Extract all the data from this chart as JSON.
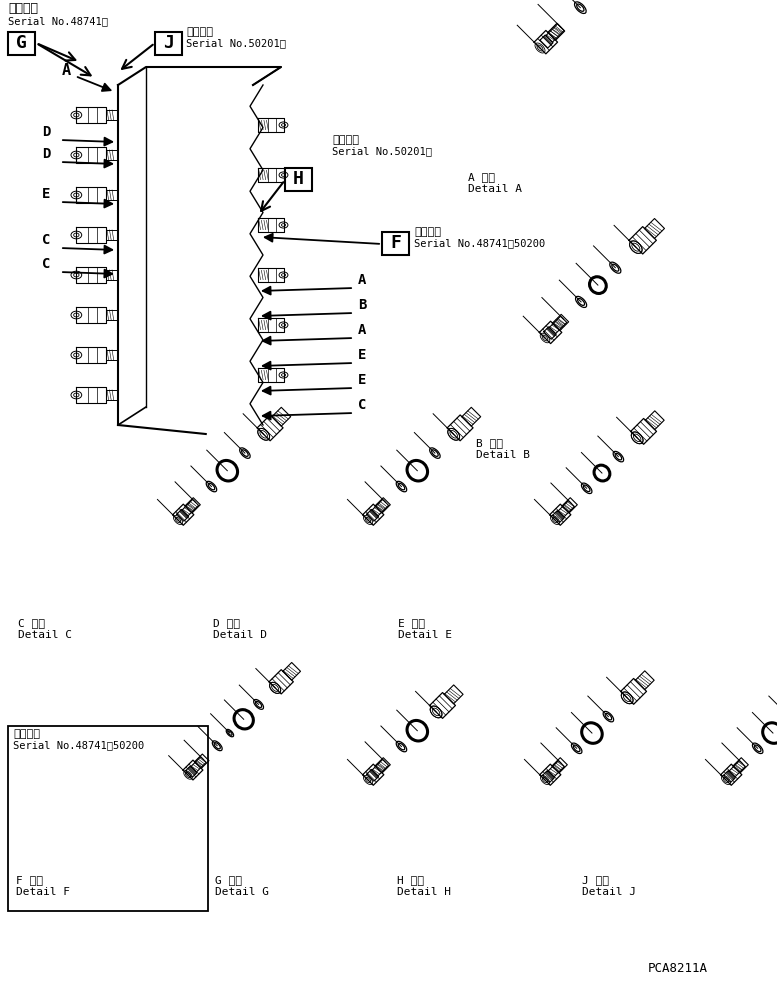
{
  "fig_width": 7.77,
  "fig_height": 9.89,
  "dpi": 100,
  "bg_color": "#ffffff",
  "lc": "#000000",
  "title_tekiyo": "適用号機",
  "title_tekiyo2": "適用号機",
  "serial_48741": "Serial No.48741～",
  "serial_50201": "Serial No.50201～",
  "serial_range": "Serial No.48741～50200",
  "part_code": "PCA8211A",
  "detail_A": "A 詳細\nDetail A",
  "detail_B": "B 詳細\nDetail B",
  "detail_C": "C 詳細\nDetail C",
  "detail_D": "D 詳細\nDetail D",
  "detail_E": "E 詳細\nDetail E",
  "detail_F": "F 詳細\nDetail F",
  "detail_G": "G 詳細\nDetail G",
  "detail_H": "H 詳細\nDetail H",
  "detail_J": "J 詳細\nDetail J",
  "label_G": "G",
  "label_J": "J",
  "label_H": "H",
  "label_F": "F",
  "label_A": "A",
  "label_D": "D",
  "left_labels": [
    "D",
    "D",
    "E",
    "C",
    "C"
  ],
  "left_y": [
    140,
    162,
    202,
    248,
    272
  ],
  "right_labels": [
    "A",
    "B",
    "A",
    "E",
    "E",
    "C"
  ],
  "right_y": [
    288,
    313,
    338,
    363,
    388,
    413
  ]
}
